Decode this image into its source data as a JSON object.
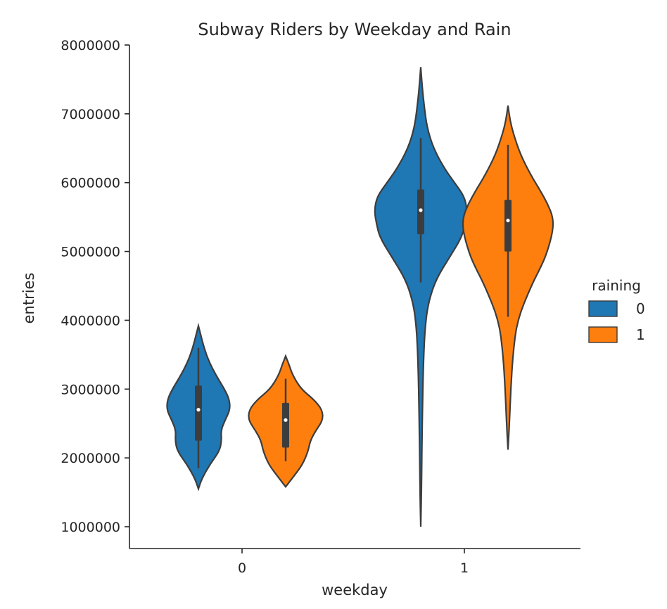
{
  "chart_data": {
    "type": "violin",
    "title": "Subway Riders by Weekday and Rain",
    "xlabel": "weekday",
    "ylabel": "entries",
    "categories": [
      "0",
      "1"
    ],
    "ylim": [
      700000,
      8000000
    ],
    "yticks": [
      1000000,
      2000000,
      3000000,
      4000000,
      5000000,
      6000000,
      7000000,
      8000000
    ],
    "ytick_labels": [
      "1000000",
      "2000000",
      "3000000",
      "4000000",
      "5000000",
      "6000000",
      "7000000",
      "8000000"
    ],
    "grid": false,
    "legend": {
      "title": "raining",
      "placement": "right"
    },
    "series": [
      {
        "name": "0",
        "color": "#1f77b4",
        "violins": [
          {
            "category": "0",
            "min": 1550000,
            "max": 3920000,
            "q1": 2250000,
            "median": 2700000,
            "q3": 3050000,
            "whisker_low": 1850000,
            "whisker_high": 3600000,
            "profile": [
              [
                1550000,
                0.0
              ],
              [
                1700000,
                0.05
              ],
              [
                1900000,
                0.16
              ],
              [
                2100000,
                0.3
              ],
              [
                2250000,
                0.33
              ],
              [
                2400000,
                0.32
              ],
              [
                2550000,
                0.38
              ],
              [
                2700000,
                0.45
              ],
              [
                2850000,
                0.44
              ],
              [
                3000000,
                0.37
              ],
              [
                3200000,
                0.25
              ],
              [
                3400000,
                0.15
              ],
              [
                3600000,
                0.08
              ],
              [
                3800000,
                0.03
              ],
              [
                3920000,
                0.0
              ]
            ]
          },
          {
            "category": "1",
            "min": 1000000,
            "max": 7680000,
            "q1": 5250000,
            "median": 5600000,
            "q3": 5900000,
            "whisker_low": 4550000,
            "whisker_high": 6650000,
            "profile": [
              [
                1000000,
                0.0
              ],
              [
                1500000,
                0.01
              ],
              [
                2500000,
                0.02
              ],
              [
                3500000,
                0.04
              ],
              [
                4000000,
                0.07
              ],
              [
                4300000,
                0.12
              ],
              [
                4600000,
                0.22
              ],
              [
                4900000,
                0.4
              ],
              [
                5200000,
                0.58
              ],
              [
                5400000,
                0.63
              ],
              [
                5600000,
                0.66
              ],
              [
                5800000,
                0.62
              ],
              [
                6000000,
                0.48
              ],
              [
                6200000,
                0.34
              ],
              [
                6500000,
                0.18
              ],
              [
                6800000,
                0.09
              ],
              [
                7100000,
                0.05
              ],
              [
                7400000,
                0.02
              ],
              [
                7680000,
                0.0
              ]
            ]
          }
        ]
      },
      {
        "name": "1",
        "color": "#ff7f0e",
        "violins": [
          {
            "category": "0",
            "min": 1580000,
            "max": 3480000,
            "q1": 2150000,
            "median": 2550000,
            "q3": 2800000,
            "whisker_low": 1950000,
            "whisker_high": 3150000,
            "profile": [
              [
                1580000,
                0.0
              ],
              [
                1700000,
                0.09
              ],
              [
                1900000,
                0.24
              ],
              [
                2100000,
                0.32
              ],
              [
                2250000,
                0.35
              ],
              [
                2400000,
                0.43
              ],
              [
                2550000,
                0.53
              ],
              [
                2700000,
                0.52
              ],
              [
                2850000,
                0.4
              ],
              [
                3000000,
                0.22
              ],
              [
                3200000,
                0.1
              ],
              [
                3350000,
                0.05
              ],
              [
                3480000,
                0.0
              ]
            ]
          },
          {
            "category": "1",
            "min": 2120000,
            "max": 7120000,
            "q1": 5000000,
            "median": 5450000,
            "q3": 5750000,
            "whisker_low": 4050000,
            "whisker_high": 6550000,
            "profile": [
              [
                2120000,
                0.0
              ],
              [
                2500000,
                0.02
              ],
              [
                3000000,
                0.04
              ],
              [
                3500000,
                0.07
              ],
              [
                4000000,
                0.13
              ],
              [
                4500000,
                0.33
              ],
              [
                4800000,
                0.48
              ],
              [
                5000000,
                0.56
              ],
              [
                5300000,
                0.64
              ],
              [
                5500000,
                0.64
              ],
              [
                5700000,
                0.56
              ],
              [
                5900000,
                0.45
              ],
              [
                6100000,
                0.33
              ],
              [
                6400000,
                0.18
              ],
              [
                6700000,
                0.08
              ],
              [
                6900000,
                0.03
              ],
              [
                7120000,
                0.0
              ]
            ]
          }
        ]
      }
    ]
  }
}
